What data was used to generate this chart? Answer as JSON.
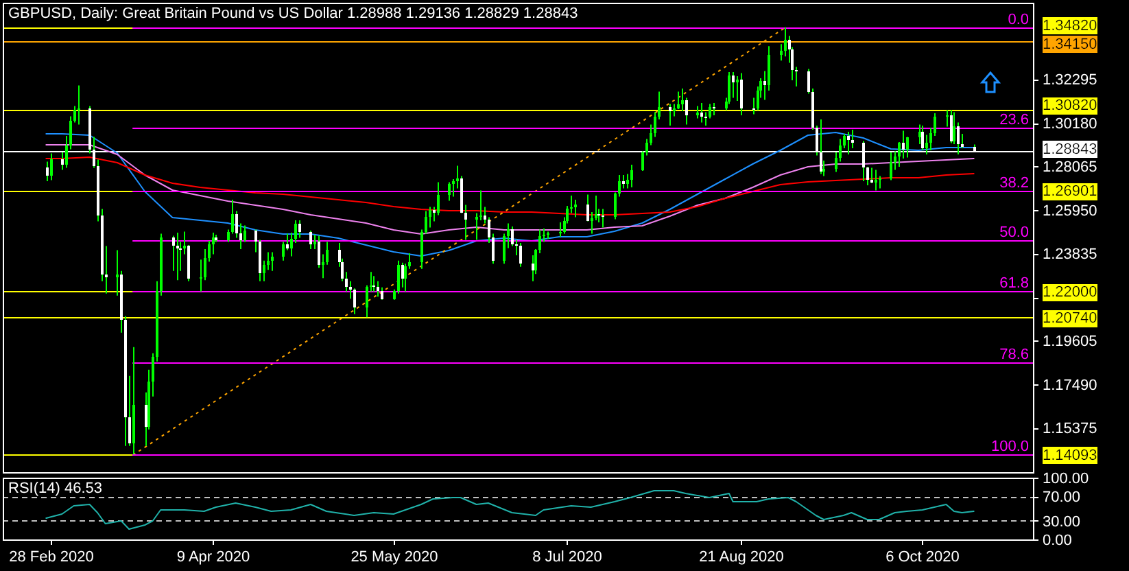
{
  "chart_data": [
    {
      "type": "candlestick",
      "title": "GBPUSD, Daily: Great Britain Pound vs US Dollar 1.28988 1.29136 1.28829 1.28843",
      "x": [
        "2020-02-27",
        "2020-02-28",
        "2020-03-02",
        "2020-03-03",
        "2020-03-04",
        "2020-03-05",
        "2020-03-06",
        "2020-03-09",
        "2020-03-10",
        "2020-03-11",
        "2020-03-12",
        "2020-03-13",
        "2020-03-16",
        "2020-03-17",
        "2020-03-18",
        "2020-03-19",
        "2020-03-20",
        "2020-03-23",
        "2020-03-24",
        "2020-03-25",
        "2020-03-26",
        "2020-03-27",
        "2020-03-30",
        "2020-03-31",
        "2020-04-01",
        "2020-04-02",
        "2020-04-03",
        "2020-04-06",
        "2020-04-07",
        "2020-04-08",
        "2020-04-09",
        "2020-04-10",
        "2020-04-13",
        "2020-04-14",
        "2020-04-15",
        "2020-04-16",
        "2020-04-17",
        "2020-04-20",
        "2020-04-21",
        "2020-04-22",
        "2020-04-23",
        "2020-04-24",
        "2020-04-27",
        "2020-04-28",
        "2020-04-29",
        "2020-04-30",
        "2020-05-01",
        "2020-05-04",
        "2020-05-05",
        "2020-05-06",
        "2020-05-07",
        "2020-05-08",
        "2020-05-11",
        "2020-05-12",
        "2020-05-13",
        "2020-05-14",
        "2020-05-15",
        "2020-05-18",
        "2020-05-19",
        "2020-05-20",
        "2020-05-21",
        "2020-05-22",
        "2020-05-25",
        "2020-05-26",
        "2020-05-27",
        "2020-05-28",
        "2020-05-29",
        "2020-06-01",
        "2020-06-02",
        "2020-06-03",
        "2020-06-04",
        "2020-06-05",
        "2020-06-08",
        "2020-06-09",
        "2020-06-10",
        "2020-06-11",
        "2020-06-12",
        "2020-06-15",
        "2020-06-16",
        "2020-06-17",
        "2020-06-18",
        "2020-06-19",
        "2020-06-22",
        "2020-06-23",
        "2020-06-24",
        "2020-06-25",
        "2020-06-26",
        "2020-06-29",
        "2020-06-30",
        "2020-07-01",
        "2020-07-02",
        "2020-07-03",
        "2020-07-06",
        "2020-07-07",
        "2020-07-08",
        "2020-07-09",
        "2020-07-10",
        "2020-07-13",
        "2020-07-14",
        "2020-07-15",
        "2020-07-16",
        "2020-07-17",
        "2020-07-20",
        "2020-07-21",
        "2020-07-22",
        "2020-07-23",
        "2020-07-24",
        "2020-07-27",
        "2020-07-28",
        "2020-07-29",
        "2020-07-30",
        "2020-07-31",
        "2020-08-03",
        "2020-08-04",
        "2020-08-05",
        "2020-08-06",
        "2020-08-07",
        "2020-08-10",
        "2020-08-11",
        "2020-08-12",
        "2020-08-13",
        "2020-08-14",
        "2020-08-17",
        "2020-08-18",
        "2020-08-19",
        "2020-08-20",
        "2020-08-21",
        "2020-08-24",
        "2020-08-25",
        "2020-08-26",
        "2020-08-27",
        "2020-08-28",
        "2020-08-31",
        "2020-09-01",
        "2020-09-02",
        "2020-09-03",
        "2020-09-04",
        "2020-09-07",
        "2020-09-08",
        "2020-09-09",
        "2020-09-10",
        "2020-09-11",
        "2020-09-14",
        "2020-09-15",
        "2020-09-16",
        "2020-09-17",
        "2020-09-18",
        "2020-09-21",
        "2020-09-22",
        "2020-09-23",
        "2020-09-24",
        "2020-09-25",
        "2020-09-28",
        "2020-09-29",
        "2020-09-30",
        "2020-10-01",
        "2020-10-02",
        "2020-10-05",
        "2020-10-06",
        "2020-10-07",
        "2020-10-08",
        "2020-10-09",
        "2020-10-12",
        "2020-10-13",
        "2020-10-14",
        "2020-10-15",
        "2020-10-16",
        "2020-10-19"
      ],
      "ohlc": [
        [
          1.28,
          1.283,
          1.2735,
          1.276
        ],
        [
          1.276,
          1.287,
          1.274,
          1.284
        ],
        [
          1.284,
          1.2875,
          1.279,
          1.2815
        ],
        [
          1.2815,
          1.2955,
          1.28,
          1.2905
        ],
        [
          1.2905,
          1.305,
          1.289,
          1.303
        ],
        [
          1.303,
          1.31,
          1.302,
          1.308
        ],
        [
          1.308,
          1.32,
          1.301,
          1.3085
        ],
        [
          1.3085,
          1.31,
          1.287,
          1.289
        ],
        [
          1.289,
          1.295,
          1.28,
          1.281
        ],
        [
          1.281,
          1.284,
          1.254,
          1.257
        ],
        [
          1.257,
          1.26,
          1.225,
          1.228
        ],
        [
          1.228,
          1.242,
          1.219,
          1.227
        ],
        [
          1.227,
          1.24,
          1.218,
          1.228
        ],
        [
          1.228,
          1.23,
          1.2,
          1.206
        ],
        [
          1.206,
          1.208,
          1.145,
          1.159
        ],
        [
          1.159,
          1.179,
          1.145,
          1.146
        ],
        [
          1.146,
          1.193,
          1.14093,
          1.165
        ],
        [
          1.165,
          1.171,
          1.145,
          1.154
        ],
        [
          1.154,
          1.182,
          1.153,
          1.176
        ],
        [
          1.176,
          1.19,
          1.169,
          1.188
        ],
        [
          1.188,
          1.225,
          1.186,
          1.22
        ],
        [
          1.22,
          1.248,
          1.218,
          1.246
        ],
        [
          1.246,
          1.247,
          1.23,
          1.242
        ],
        [
          1.242,
          1.2485,
          1.2255,
          1.241
        ],
        [
          1.241,
          1.244,
          1.23,
          1.241
        ],
        [
          1.241,
          1.249,
          1.238,
          1.242
        ],
        [
          1.242,
          1.2425,
          1.225,
          1.2265
        ],
        [
          1.2265,
          1.2355,
          1.22,
          1.227
        ],
        [
          1.227,
          1.2405,
          1.2255,
          1.236
        ],
        [
          1.236,
          1.2445,
          1.2345,
          1.243
        ],
        [
          1.243,
          1.2485,
          1.238,
          1.246
        ],
        [
          1.246,
          1.2475,
          1.244,
          1.245
        ],
        [
          1.245,
          1.25,
          1.244,
          1.249
        ],
        [
          1.249,
          1.2645,
          1.248,
          1.2575
        ],
        [
          1.2575,
          1.259,
          1.246,
          1.248
        ],
        [
          1.248,
          1.253,
          1.2405,
          1.245
        ],
        [
          1.245,
          1.252,
          1.244,
          1.2495
        ],
        [
          1.2495,
          1.25,
          1.239,
          1.244
        ],
        [
          1.244,
          1.245,
          1.225,
          1.229
        ],
        [
          1.229,
          1.235,
          1.225,
          1.233
        ],
        [
          1.233,
          1.239,
          1.2305,
          1.235
        ],
        [
          1.235,
          1.239,
          1.23,
          1.237
        ],
        [
          1.237,
          1.244,
          1.235,
          1.243
        ],
        [
          1.243,
          1.248,
          1.24,
          1.241
        ],
        [
          1.241,
          1.2485,
          1.237,
          1.2455
        ],
        [
          1.2455,
          1.2545,
          1.2435,
          1.253
        ],
        [
          1.253,
          1.2545,
          1.246,
          1.249
        ],
        [
          1.249,
          1.2495,
          1.2405,
          1.243
        ],
        [
          1.243,
          1.2475,
          1.2405,
          1.244
        ],
        [
          1.244,
          1.247,
          1.2315,
          1.233
        ],
        [
          1.233,
          1.238,
          1.2265,
          1.234
        ],
        [
          1.234,
          1.244,
          1.233,
          1.2405
        ],
        [
          1.2405,
          1.2435,
          1.232,
          1.234
        ],
        [
          1.234,
          1.236,
          1.225,
          1.2265
        ],
        [
          1.2265,
          1.2295,
          1.22,
          1.222
        ],
        [
          1.222,
          1.225,
          1.2165,
          1.221
        ],
        [
          1.221,
          1.2215,
          1.209,
          1.2125
        ],
        [
          1.2125,
          1.223,
          1.2075,
          1.222
        ],
        [
          1.222,
          1.2295,
          1.22,
          1.223
        ],
        [
          1.223,
          1.2275,
          1.22,
          1.222
        ],
        [
          1.222,
          1.225,
          1.2175,
          1.22
        ],
        [
          1.22,
          1.222,
          1.216,
          1.2165
        ],
        [
          1.2165,
          1.221,
          1.216,
          1.22
        ],
        [
          1.22,
          1.235,
          1.219,
          1.233
        ],
        [
          1.233,
          1.234,
          1.222,
          1.226
        ],
        [
          1.226,
          1.2335,
          1.22,
          1.232
        ],
        [
          1.232,
          1.2385,
          1.231,
          1.2345
        ],
        [
          1.2345,
          1.25,
          1.231,
          1.249
        ],
        [
          1.249,
          1.259,
          1.248,
          1.256
        ],
        [
          1.256,
          1.261,
          1.251,
          1.2595
        ],
        [
          1.2595,
          1.261,
          1.254,
          1.258
        ],
        [
          1.258,
          1.273,
          1.257,
          1.267
        ],
        [
          1.267,
          1.273,
          1.264,
          1.272
        ],
        [
          1.272,
          1.2745,
          1.266,
          1.2735
        ],
        [
          1.2735,
          1.281,
          1.27,
          1.275
        ],
        [
          1.275,
          1.276,
          1.258,
          1.2585
        ],
        [
          1.2585,
          1.262,
          1.245,
          1.255
        ],
        [
          1.255,
          1.258,
          1.245,
          1.256
        ],
        [
          1.256,
          1.269,
          1.2545,
          1.257
        ],
        [
          1.257,
          1.261,
          1.253,
          1.255
        ],
        [
          1.255,
          1.256,
          1.2435,
          1.246
        ],
        [
          1.246,
          1.248,
          1.2335,
          1.235
        ],
        [
          1.235,
          1.248,
          1.2335,
          1.247
        ],
        [
          1.247,
          1.253,
          1.241,
          1.25
        ],
        [
          1.25,
          1.2515,
          1.242,
          1.243
        ],
        [
          1.243,
          1.245,
          1.2375,
          1.242
        ],
        [
          1.242,
          1.2435,
          1.232,
          1.2335
        ],
        [
          1.2335,
          1.2375,
          1.225,
          1.23
        ],
        [
          1.23,
          1.2405,
          1.2285,
          1.24
        ],
        [
          1.24,
          1.25,
          1.2385,
          1.247
        ],
        [
          1.247,
          1.2505,
          1.244,
          1.2475
        ],
        [
          1.2475,
          1.249,
          1.2455,
          1.248
        ],
        [
          1.248,
          1.2535,
          1.2465,
          1.249
        ],
        [
          1.249,
          1.256,
          1.248,
          1.2545
        ],
        [
          1.2545,
          1.2615,
          1.253,
          1.2605
        ],
        [
          1.2605,
          1.2665,
          1.258,
          1.261
        ],
        [
          1.261,
          1.2645,
          1.256,
          1.262
        ],
        [
          1.262,
          1.267,
          1.254,
          1.2545
        ],
        [
          1.2545,
          1.2585,
          1.248,
          1.2555
        ],
        [
          1.2555,
          1.2665,
          1.2545,
          1.2575
        ],
        [
          1.2575,
          1.26,
          1.2535,
          1.257
        ],
        [
          1.257,
          1.26,
          1.251,
          1.2565
        ],
        [
          1.2565,
          1.268,
          1.255,
          1.2675
        ],
        [
          1.2675,
          1.2765,
          1.266,
          1.2735
        ],
        [
          1.2735,
          1.2765,
          1.27,
          1.2725
        ],
        [
          1.2725,
          1.277,
          1.27,
          1.274
        ],
        [
          1.274,
          1.2815,
          1.2705,
          1.279
        ],
        [
          1.279,
          1.288,
          1.2785,
          1.2875
        ],
        [
          1.2875,
          1.294,
          1.286,
          1.292
        ],
        [
          1.292,
          1.301,
          1.291,
          1.297
        ],
        [
          1.297,
          1.307,
          1.295,
          1.3045
        ],
        [
          1.3045,
          1.317,
          1.3035,
          1.3095
        ],
        [
          1.3095,
          1.311,
          1.3005,
          1.3075
        ],
        [
          1.3075,
          1.311,
          1.305,
          1.309
        ],
        [
          1.309,
          1.317,
          1.3085,
          1.311
        ],
        [
          1.311,
          1.3185,
          1.3075,
          1.3125
        ],
        [
          1.3125,
          1.314,
          1.301,
          1.3055
        ],
        [
          1.3055,
          1.31,
          1.304,
          1.307
        ],
        [
          1.307,
          1.3115,
          1.302,
          1.305
        ],
        [
          1.305,
          1.307,
          1.3005,
          1.3045
        ],
        [
          1.3045,
          1.311,
          1.304,
          1.3095
        ],
        [
          1.3095,
          1.3115,
          1.3055,
          1.3085
        ],
        [
          1.3085,
          1.314,
          1.308,
          1.312
        ],
        [
          1.312,
          1.3265,
          1.311,
          1.3245
        ],
        [
          1.3245,
          1.3265,
          1.314,
          1.3215
        ],
        [
          1.3215,
          1.3245,
          1.3125,
          1.323
        ],
        [
          1.323,
          1.326,
          1.3055,
          1.309
        ],
        [
          1.309,
          1.314,
          1.306,
          1.3085
        ],
        [
          1.3085,
          1.3195,
          1.308,
          1.3175
        ],
        [
          1.3175,
          1.3235,
          1.314,
          1.322
        ],
        [
          1.322,
          1.327,
          1.313,
          1.32
        ],
        [
          1.32,
          1.339,
          1.3175,
          1.335
        ],
        [
          1.335,
          1.34,
          1.332,
          1.337
        ],
        [
          1.337,
          1.3482,
          1.334,
          1.342
        ],
        [
          1.342,
          1.344,
          1.331,
          1.3375
        ],
        [
          1.3375,
          1.3385,
          1.3225,
          1.3275
        ],
        [
          1.3275,
          1.329,
          1.3195,
          1.327
        ],
        [
          1.327,
          1.328,
          1.316,
          1.3165
        ],
        [
          1.3165,
          1.3185,
          1.2985,
          1.2995
        ],
        [
          1.2995,
          1.3005,
          1.286,
          1.2875
        ],
        [
          1.2875,
          1.3035,
          1.277,
          1.278
        ],
        [
          1.278,
          1.2835,
          1.276,
          1.2795
        ],
        [
          1.2795,
          1.2875,
          1.278,
          1.2845
        ],
        [
          1.2845,
          1.294,
          1.283,
          1.291
        ],
        [
          1.291,
          1.2965,
          1.2895,
          1.2955
        ],
        [
          1.2955,
          1.2975,
          1.2865,
          1.2935
        ],
        [
          1.2935,
          1.2985,
          1.2895,
          1.292
        ],
        [
          1.292,
          1.293,
          1.2735,
          1.28
        ],
        [
          1.28,
          1.2805,
          1.2715,
          1.2745
        ],
        [
          1.2745,
          1.28,
          1.2725,
          1.273
        ],
        [
          1.273,
          1.279,
          1.269,
          1.2745
        ],
        [
          1.2745,
          1.276,
          1.27,
          1.275
        ],
        [
          1.275,
          1.2875,
          1.274,
          1.283
        ],
        [
          1.283,
          1.288,
          1.279,
          1.2855
        ],
        [
          1.2855,
          1.2925,
          1.2805,
          1.292
        ],
        [
          1.292,
          1.298,
          1.2845,
          1.2885
        ],
        [
          1.2885,
          1.295,
          1.285,
          1.2945
        ],
        [
          1.2945,
          1.301,
          1.2915,
          1.2975
        ],
        [
          1.2975,
          1.3005,
          1.2885,
          1.2895
        ],
        [
          1.2895,
          1.296,
          1.2865,
          1.292
        ],
        [
          1.292,
          1.2995,
          1.2885,
          1.297
        ],
        [
          1.297,
          1.3065,
          1.2955,
          1.3045
        ],
        [
          1.3045,
          1.308,
          1.3,
          1.3055
        ],
        [
          1.3055,
          1.308,
          1.292,
          1.293
        ],
        [
          1.293,
          1.307,
          1.2915,
          1.3
        ],
        [
          1.3,
          1.302,
          1.2865,
          1.2915
        ],
        [
          1.2915,
          1.2965,
          1.2895,
          1.29
        ],
        [
          1.28988,
          1.29136,
          1.28829,
          1.28843
        ]
      ],
      "xlim": [
        "2020-02-16",
        "2020-11-03"
      ],
      "ylim": [
        1.1323,
        1.3601
      ],
      "yticks": [
        1.15375,
        {
          "value": 1.1749,
          "label": "1.17490"
        },
        1.19605,
        {
          "value": 1.2172,
          "label": null
        },
        1.23835,
        {
          "value": 1.2595,
          "label": "1.25950"
        },
        1.28065,
        {
          "value": 1.3018,
          "label": "1.30180"
        },
        1.32295
      ],
      "tick_labels": "y",
      "series": [
        {
          "type": "line",
          "color": "#1e90ff",
          "x": [
            "2020-02-27",
            "2020-03-02",
            "2020-03-09",
            "2020-03-16",
            "2020-03-23",
            "2020-03-30",
            "2020-04-06",
            "2020-04-13",
            "2020-04-20",
            "2020-04-27",
            "2020-05-04",
            "2020-05-11",
            "2020-05-18",
            "2020-05-25",
            "2020-06-01",
            "2020-06-08",
            "2020-06-15",
            "2020-06-22",
            "2020-06-29",
            "2020-07-06",
            "2020-07-13",
            "2020-07-20",
            "2020-07-27",
            "2020-08-03",
            "2020-08-10",
            "2020-08-17",
            "2020-08-24",
            "2020-08-31",
            "2020-09-07",
            "2020-09-14",
            "2020-09-21",
            "2020-09-28",
            "2020-10-05",
            "2020-10-12",
            "2020-10-19"
          ],
          "values": [
            1.2967,
            1.2967,
            1.2964,
            1.2875,
            1.269,
            1.2565,
            1.2551,
            1.2538,
            1.2505,
            1.2479,
            1.2479,
            1.2459,
            1.2426,
            1.2393,
            1.2373,
            1.24,
            1.2452,
            1.2459,
            1.2452,
            1.2466,
            1.2466,
            1.2492,
            1.2538,
            1.2604,
            1.2677,
            1.2749,
            1.2822,
            1.2888,
            1.2961,
            1.2974,
            1.2947,
            1.2896,
            1.289,
            1.2903,
            1.2903
          ]
        },
        {
          "type": "line",
          "color": "#ee82ee",
          "x": [
            "2020-02-27",
            "2020-03-02",
            "2020-03-09",
            "2020-03-16",
            "2020-03-23",
            "2020-03-30",
            "2020-04-06",
            "2020-04-13",
            "2020-04-20",
            "2020-04-27",
            "2020-05-04",
            "2020-05-11",
            "2020-05-18",
            "2020-05-25",
            "2020-06-01",
            "2020-06-08",
            "2020-06-15",
            "2020-06-22",
            "2020-06-29",
            "2020-07-06",
            "2020-07-13",
            "2020-07-20",
            "2020-07-27",
            "2020-08-03",
            "2020-08-10",
            "2020-08-17",
            "2020-08-24",
            "2020-08-31",
            "2020-09-07",
            "2020-09-14",
            "2020-09-21",
            "2020-09-28",
            "2020-10-05",
            "2020-10-12",
            "2020-10-19"
          ],
          "values": [
            1.2914,
            1.2914,
            1.2914,
            1.2868,
            1.2769,
            1.2697,
            1.267,
            1.2644,
            1.2624,
            1.2604,
            1.2578,
            1.2558,
            1.2538,
            1.2505,
            1.2485,
            1.2499,
            1.2512,
            1.2505,
            1.2505,
            1.2505,
            1.2505,
            1.2512,
            1.2525,
            1.2571,
            1.2624,
            1.2657,
            1.271,
            1.2769,
            1.2809,
            1.2822,
            1.2822,
            1.2829,
            1.2835,
            1.2842,
            1.2848
          ]
        },
        {
          "type": "line",
          "color": "#ff0000",
          "x": [
            "2020-02-27",
            "2020-03-02",
            "2020-03-09",
            "2020-03-16",
            "2020-03-23",
            "2020-03-30",
            "2020-04-06",
            "2020-04-13",
            "2020-04-20",
            "2020-04-27",
            "2020-05-04",
            "2020-05-11",
            "2020-05-18",
            "2020-05-25",
            "2020-06-01",
            "2020-06-08",
            "2020-06-15",
            "2020-06-22",
            "2020-06-29",
            "2020-07-06",
            "2020-07-13",
            "2020-07-20",
            "2020-07-27",
            "2020-08-03",
            "2020-08-10",
            "2020-08-17",
            "2020-08-24",
            "2020-08-31",
            "2020-09-07",
            "2020-09-14",
            "2020-09-21",
            "2020-09-28",
            "2020-10-05",
            "2020-10-12",
            "2020-10-19"
          ],
          "values": [
            1.2848,
            1.285,
            1.2855,
            1.2829,
            1.2769,
            1.273,
            1.271,
            1.2697,
            1.2683,
            1.2677,
            1.2664,
            1.265,
            1.2637,
            1.2617,
            1.2604,
            1.2598,
            1.2598,
            1.2591,
            1.2591,
            1.2584,
            1.2578,
            1.2578,
            1.2584,
            1.2591,
            1.2617,
            1.2657,
            1.269,
            1.2723,
            1.2736,
            1.2743,
            1.2749,
            1.2756,
            1.2756,
            1.2769,
            1.2776
          ]
        },
        {
          "type": "line",
          "color": "#ffa500",
          "line_style": "dotted",
          "x": [
            "2020-03-20",
            "2020-09-01"
          ],
          "values": [
            1.1409,
            1.3482
          ]
        },
        {
          "type": "line",
          "name": "0.0",
          "color": "#ff00ff",
          "x": [
            "2020-03-20",
            "2020-11-03"
          ],
          "values": [
            1.3482,
            1.3482
          ]
        },
        {
          "type": "line",
          "name": "23.6",
          "color": "#ff00ff",
          "x": [
            "2020-03-20",
            "2020-11-03"
          ],
          "values": [
            1.2993,
            1.2993
          ]
        },
        {
          "type": "line",
          "name": "38.2",
          "color": "#ff00ff",
          "x": [
            "2020-03-20",
            "2020-11-03"
          ],
          "values": [
            1.269,
            1.269
          ]
        },
        {
          "type": "line",
          "name": "50.0",
          "color": "#ff00ff",
          "x": [
            "2020-03-20",
            "2020-11-03"
          ],
          "values": [
            1.2446,
            1.2446
          ]
        },
        {
          "type": "line",
          "name": "61.8",
          "color": "#ff00ff",
          "x": [
            "2020-03-20",
            "2020-11-03"
          ],
          "values": [
            1.2201,
            1.2201
          ]
        },
        {
          "type": "line",
          "name": "78.6",
          "color": "#ff00ff",
          "x": [
            "2020-03-20",
            "2020-11-03"
          ],
          "values": [
            1.1853,
            1.1853
          ]
        },
        {
          "type": "line",
          "name": "100.0",
          "color": "#ff00ff",
          "x": [
            "2020-03-20",
            "2020-11-03"
          ],
          "values": [
            1.1409,
            1.1409
          ]
        }
      ],
      "ref_lines": [
        {
          "axis": "y",
          "value": 1.3482,
          "label": "1.34820",
          "color": "#ffff00"
        },
        {
          "axis": "y",
          "value": 1.3415,
          "label": "1.34150",
          "color": "#ffa500"
        },
        {
          "axis": "y",
          "value": 1.3082,
          "label": "1.30820",
          "color": "#ffff00"
        },
        {
          "axis": "y",
          "value": 1.28843,
          "label": "1.28843",
          "color": "#ffffff"
        },
        {
          "axis": "y",
          "value": 1.26901,
          "label": "1.26901",
          "color": "#ffff00"
        },
        {
          "axis": "y",
          "value": 1.22,
          "label": "1.22000",
          "color": "#ffff00"
        },
        {
          "axis": "y",
          "value": 1.2074,
          "label": "1.20740",
          "color": "#ffff00"
        },
        {
          "axis": "y",
          "value": 1.14093,
          "label": "1.14093",
          "color": "#ffff00"
        }
      ]
    },
    {
      "type": "line",
      "title": "RSI(14) 46.53",
      "xlim": [
        "2020-02-16",
        "2020-11-03"
      ],
      "xticks": [
        {
          "value": "2020-02-28",
          "label": "28 Feb 2020"
        },
        {
          "value": "2020-04-09",
          "label": "9 Apr 2020"
        },
        {
          "value": "2020-05-25",
          "label": "25 May 2020"
        },
        {
          "value": "2020-07-08",
          "label": "8 Jul 2020"
        },
        {
          "value": "2020-08-21",
          "label": "21 Aug 2020"
        },
        {
          "value": "2020-10-06",
          "label": "6 Oct 2020"
        }
      ],
      "ylim": [
        0,
        100
      ],
      "yticks": [
        {
          "value": 100,
          "label": "100.00"
        },
        {
          "value": 70,
          "label": "70.00"
        },
        {
          "value": 30,
          "label": "30.00"
        },
        {
          "value": 0,
          "label": "0.00"
        }
      ],
      "series": [
        {
          "type": "line",
          "color": "#20b2aa",
          "x": [
            "2020-02-27",
            "2020-03-02",
            "2020-03-05",
            "2020-03-09",
            "2020-03-11",
            "2020-03-13",
            "2020-03-17",
            "2020-03-19",
            "2020-03-23",
            "2020-03-25",
            "2020-03-27",
            "2020-04-02",
            "2020-04-07",
            "2020-04-10",
            "2020-04-15",
            "2020-04-20",
            "2020-04-24",
            "2020-04-29",
            "2020-05-04",
            "2020-05-08",
            "2020-05-15",
            "2020-05-20",
            "2020-05-25",
            "2020-06-01",
            "2020-06-04",
            "2020-06-09",
            "2020-06-11",
            "2020-06-15",
            "2020-06-18",
            "2020-06-24",
            "2020-06-30",
            "2020-07-02",
            "2020-07-09",
            "2020-07-14",
            "2020-07-20",
            "2020-07-24",
            "2020-07-30",
            "2020-08-04",
            "2020-08-07",
            "2020-08-13",
            "2020-08-18",
            "2020-08-19",
            "2020-08-25",
            "2020-08-28",
            "2020-09-02",
            "2020-09-04",
            "2020-09-09",
            "2020-09-11",
            "2020-09-16",
            "2020-09-18",
            "2020-09-22",
            "2020-09-25",
            "2020-09-29",
            "2020-10-02",
            "2020-10-06",
            "2020-10-12",
            "2020-10-14",
            "2020-10-16",
            "2020-10-19"
          ],
          "values": [
            36,
            43,
            56,
            57,
            44,
            27,
            30,
            18,
            24,
            31,
            50,
            50,
            46,
            53,
            59,
            53,
            46,
            50,
            57,
            46,
            40,
            44,
            42,
            57,
            66,
            70,
            70,
            57,
            60,
            44,
            40,
            50,
            55,
            53,
            63,
            70,
            79,
            79,
            76,
            68,
            75,
            62,
            62,
            66,
            70,
            62,
            40,
            33,
            40,
            44,
            33,
            33,
            44,
            46,
            50,
            57,
            46,
            44,
            46.53
          ]
        }
      ],
      "ref_lines": [
        {
          "axis": "y",
          "value": 70,
          "color": "#c0c0c0",
          "line_style": "dashed"
        },
        {
          "axis": "y",
          "value": 30,
          "color": "#c0c0c0",
          "line_style": "dashed"
        }
      ]
    }
  ]
}
